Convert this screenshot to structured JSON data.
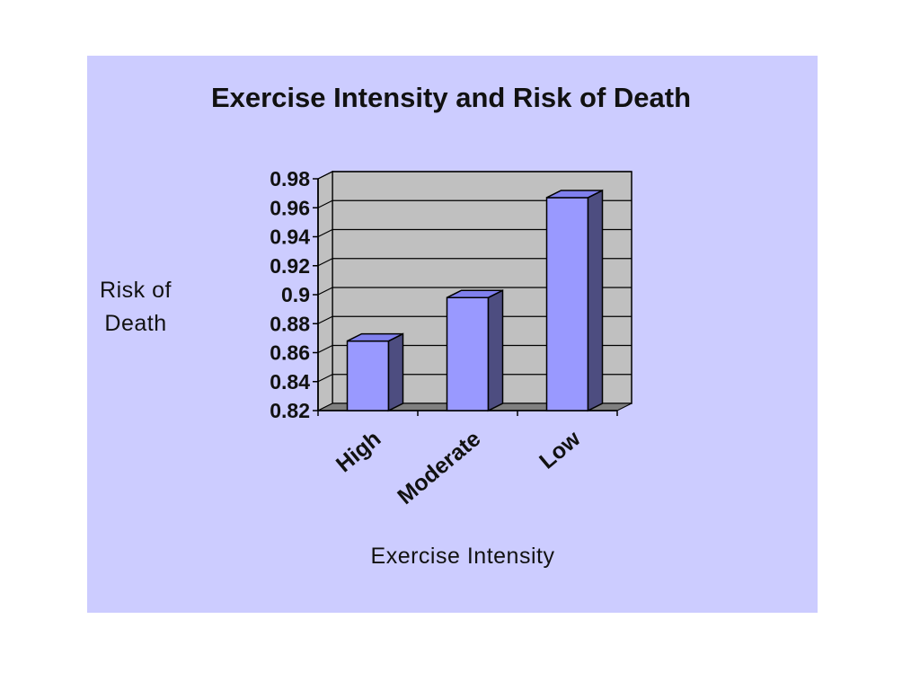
{
  "colors": {
    "panel_background": "#ccccff",
    "plot_wall": "#c0c0c0",
    "plot_floor": "#808080",
    "bar_front": "#9999ff",
    "bar_side": "#4d4d80",
    "bar_top": "#8080ee",
    "gridline": "#000000"
  },
  "chart_data": {
    "type": "bar",
    "title": "Exercise Intensity and Risk of Death",
    "xlabel": "Exercise Intensity",
    "ylabel_lines": [
      "Risk of",
      "Death"
    ],
    "categories": [
      "High",
      "Moderate",
      "Low"
    ],
    "values": [
      0.868,
      0.898,
      0.967
    ],
    "ylim": [
      0.82,
      0.98
    ],
    "yticks": [
      "0.98",
      "0.96",
      "0.94",
      "0.92",
      "0.9",
      "0.88",
      "0.86",
      "0.84",
      "0.82"
    ],
    "grid": true,
    "style": "3d-column"
  }
}
